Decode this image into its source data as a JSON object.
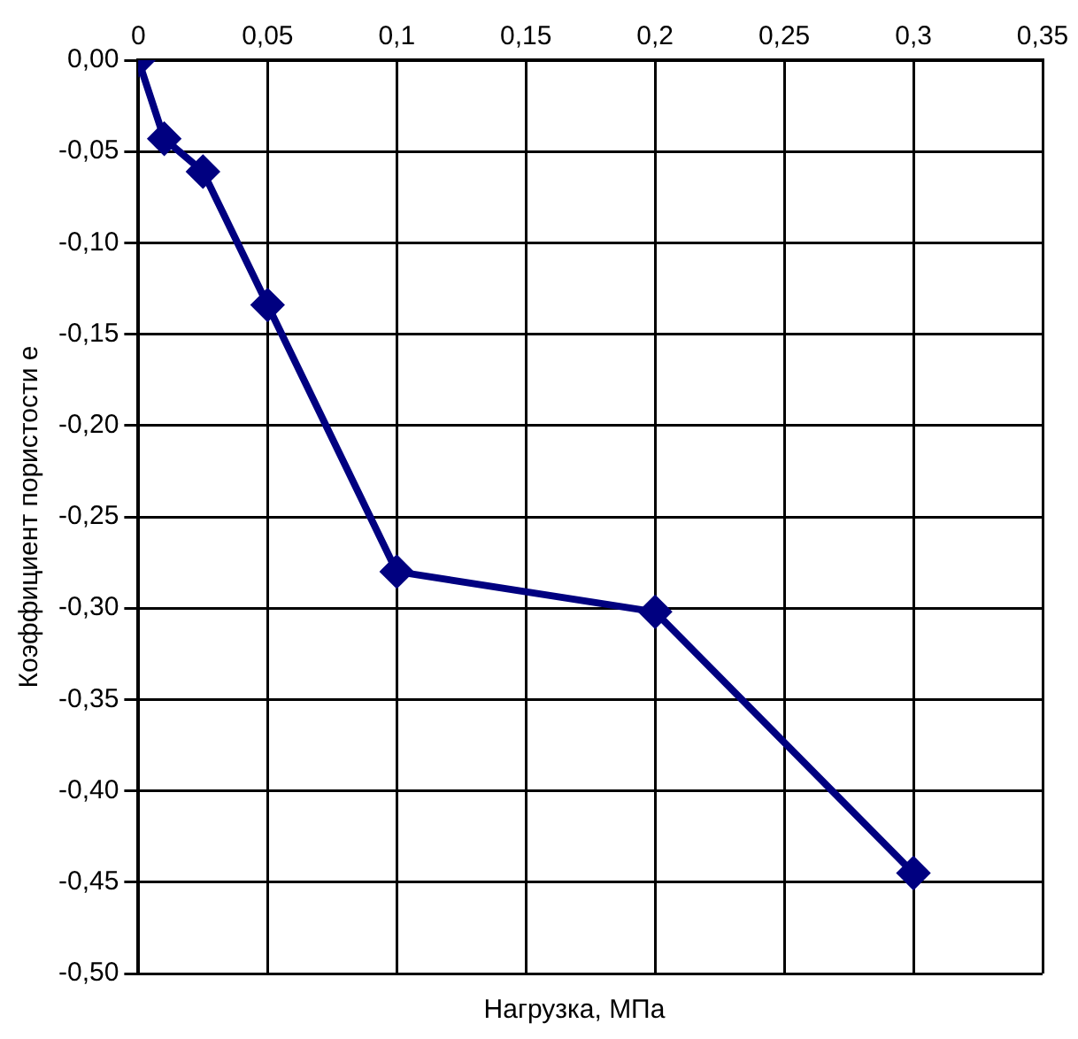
{
  "chart_data": {
    "type": "line",
    "xlabel": "Нагрузка, МПа",
    "ylabel": "Коэффициент пористости е",
    "x": [
      0,
      0.01,
      0.025,
      0.05,
      0.1,
      0.2,
      0.3
    ],
    "series": [
      {
        "color": "#000080",
        "values": [
          0,
          -0.043,
          -0.061,
          -0.134,
          -0.28,
          -0.302,
          -0.445
        ]
      }
    ],
    "xlim": [
      0,
      0.35
    ],
    "xticks": [
      0,
      {
        "value": 0.05,
        "label": "0,05"
      },
      {
        "value": 0.1,
        "label": "0,1"
      },
      {
        "value": 0.15,
        "label": "0,15"
      },
      {
        "value": 0.2,
        "label": "0,2"
      },
      {
        "value": 0.25,
        "label": "0,25"
      },
      {
        "value": 0.3,
        "label": "0,3"
      },
      {
        "value": 0.35,
        "label": "0,35"
      }
    ],
    "ylim": [
      -0.5,
      0
    ],
    "yticks": [
      {
        "value": -0.5,
        "label": "-0,50"
      },
      {
        "value": -0.45,
        "label": "-0,45"
      },
      {
        "value": -0.4,
        "label": "-0,40"
      },
      {
        "value": -0.35,
        "label": "-0,35"
      },
      {
        "value": -0.3,
        "label": "-0,30"
      },
      {
        "value": -0.25,
        "label": "-0,25"
      },
      {
        "value": -0.2,
        "label": "-0,20"
      },
      {
        "value": -0.15,
        "label": "-0,15"
      },
      {
        "value": -0.1,
        "label": "-0,10"
      },
      {
        "value": -0.05,
        "label": "-0,05"
      },
      {
        "value": 0,
        "label": "0,00"
      }
    ],
    "grid": true,
    "legend": false,
    "marker": "diamond",
    "line_style": "solid"
  }
}
